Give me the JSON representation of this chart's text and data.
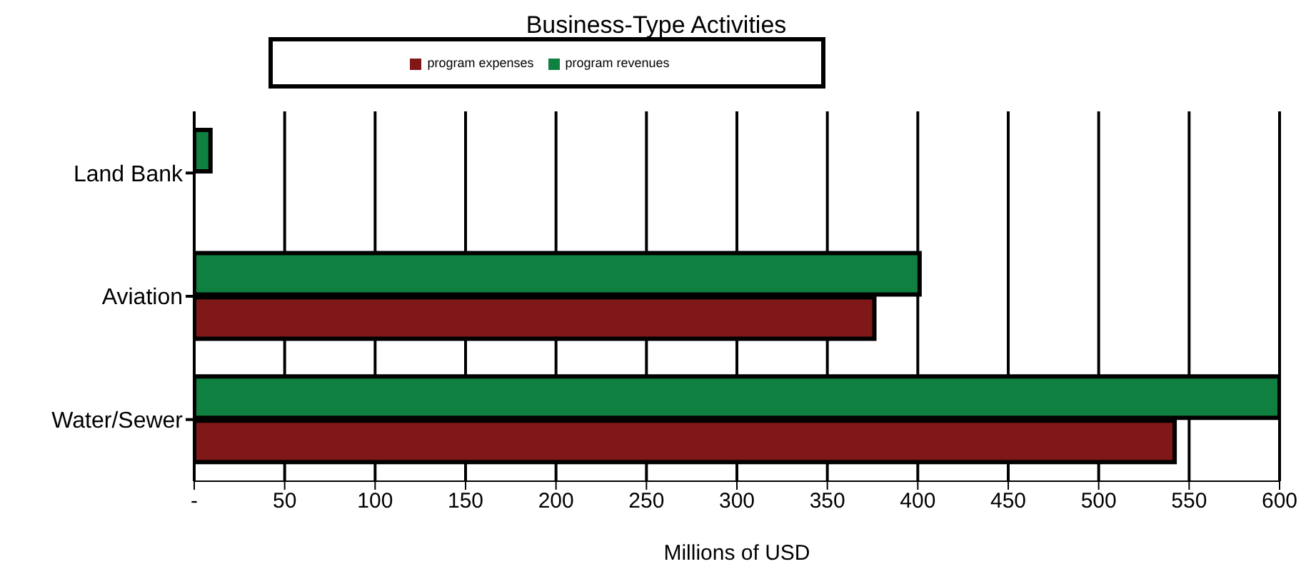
{
  "chart_data": {
    "type": "bar",
    "title": "Business-Type Activities",
    "xlabel": "Millions of USD",
    "orientation": "horizontal",
    "categories": [
      "Land Bank",
      "Aviation",
      "Water/Sewer"
    ],
    "series": [
      {
        "name": "program revenues",
        "color": "#108040",
        "values": [
          9,
          401,
          600
        ]
      },
      {
        "name": "program expenses",
        "color": "#801818",
        "values": [
          null,
          376,
          542
        ]
      }
    ],
    "xlim": [
      0,
      600
    ],
    "xticks": [
      {
        "value": 0,
        "label": "-"
      },
      50,
      100,
      150,
      200,
      250,
      300,
      350,
      400,
      450,
      500,
      550,
      600
    ],
    "grid": "x",
    "legend": "top"
  }
}
